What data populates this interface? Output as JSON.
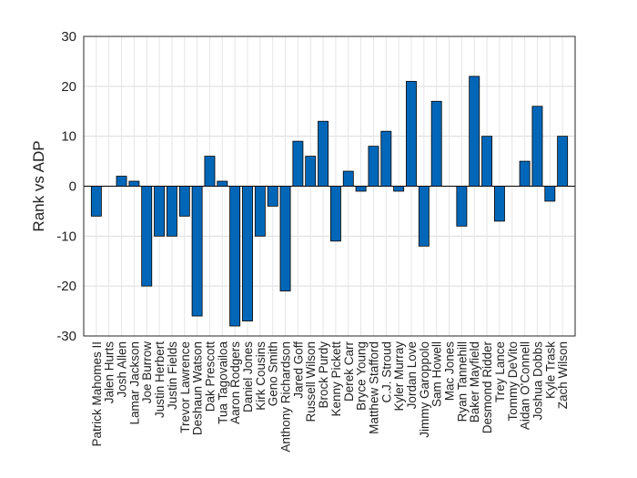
{
  "chart_data": {
    "type": "bar",
    "ylabel": "Rank vs ADP",
    "xlabel": "",
    "ylim": [
      -30,
      30
    ],
    "yticks": [
      -30,
      -20,
      -10,
      0,
      10,
      20,
      30
    ],
    "grid": true,
    "bar_color": "#0067b8",
    "categories": [
      "Patrick Mahomes II",
      "Jalen Hurts",
      "Josh Allen",
      "Lamar Jackson",
      "Joe Burrow",
      "Justin Herbert",
      "Justin Fields",
      "Trevor Lawrence",
      "Deshaun Watson",
      "Dak Prescott",
      "Tua Tagovailoa",
      "Aaron Rodgers",
      "Daniel Jones",
      "Kirk Cousins",
      "Geno Smith",
      "Anthony Richardson",
      "Jared Goff",
      "Russell Wilson",
      "Brock Purdy",
      "Kenny Pickett",
      "Derek Carr",
      "Bryce Young",
      "Matthew Stafford",
      "C.J. Stroud",
      "Kyler Murray",
      "Jordan Love",
      "Jimmy Garoppolo",
      "Sam Howell",
      "Mac Jones",
      "Ryan Tannehill",
      "Baker Mayfield",
      "Desmond Ridder",
      "Trey Lance",
      "Tommy DeVito",
      "Aidan O'Connell",
      "Joshua Dobbs",
      "Kyle Trask",
      "Zach Wilson"
    ],
    "values": [
      -6,
      0,
      2,
      1,
      -20,
      -10,
      -10,
      -6,
      -26,
      6,
      1,
      -28,
      -27,
      -10,
      -4,
      -21,
      9,
      6,
      13,
      -11,
      3,
      -1,
      8,
      11,
      -1,
      21,
      -12,
      17,
      0,
      -8,
      22,
      10,
      -7,
      0,
      5,
      16,
      -3,
      10
    ]
  }
}
